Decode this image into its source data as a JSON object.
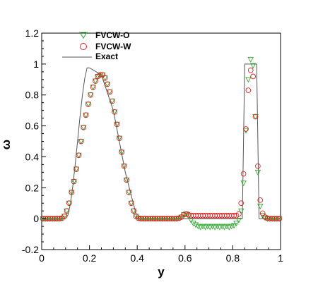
{
  "chart_data": {
    "type": "scatter",
    "xlabel": "y",
    "ylabel": "ω",
    "xlim": [
      0,
      1
    ],
    "ylim": [
      -0.2,
      1.2
    ],
    "x_ticks": [
      "0",
      "0.2",
      "0.4",
      "0.6",
      "0.8",
      "1"
    ],
    "y_ticks": [
      "-0.2",
      "0",
      "0.2",
      "0.4",
      "0.6",
      "0.8",
      "1",
      "1.2"
    ],
    "legend_position": "top-left",
    "series": [
      {
        "name": "FVCW-O",
        "marker": "triangle-down",
        "color": "#33aa33",
        "points": [
          [
            0.005,
            0
          ],
          [
            0.015,
            0
          ],
          [
            0.025,
            0
          ],
          [
            0.035,
            0
          ],
          [
            0.045,
            0
          ],
          [
            0.055,
            0
          ],
          [
            0.065,
            0
          ],
          [
            0.075,
            0
          ],
          [
            0.085,
            0.003
          ],
          [
            0.095,
            0.015
          ],
          [
            0.105,
            0.05
          ],
          [
            0.115,
            0.1
          ],
          [
            0.125,
            0.17
          ],
          [
            0.135,
            0.24
          ],
          [
            0.145,
            0.32
          ],
          [
            0.155,
            0.41
          ],
          [
            0.165,
            0.5
          ],
          [
            0.175,
            0.59
          ],
          [
            0.185,
            0.67
          ],
          [
            0.195,
            0.74
          ],
          [
            0.205,
            0.8
          ],
          [
            0.215,
            0.85
          ],
          [
            0.225,
            0.89
          ],
          [
            0.235,
            0.92
          ],
          [
            0.245,
            0.93
          ],
          [
            0.255,
            0.93
          ],
          [
            0.265,
            0.91
          ],
          [
            0.275,
            0.87
          ],
          [
            0.285,
            0.82
          ],
          [
            0.295,
            0.76
          ],
          [
            0.305,
            0.69
          ],
          [
            0.315,
            0.61
          ],
          [
            0.325,
            0.52
          ],
          [
            0.335,
            0.43
          ],
          [
            0.345,
            0.34
          ],
          [
            0.355,
            0.25
          ],
          [
            0.365,
            0.17
          ],
          [
            0.375,
            0.1
          ],
          [
            0.385,
            0.05
          ],
          [
            0.395,
            0.015
          ],
          [
            0.405,
            0.003
          ],
          [
            0.415,
            0
          ],
          [
            0.425,
            0
          ],
          [
            0.435,
            0
          ],
          [
            0.445,
            0
          ],
          [
            0.455,
            0
          ],
          [
            0.465,
            0
          ],
          [
            0.475,
            0
          ],
          [
            0.485,
            0
          ],
          [
            0.495,
            0
          ],
          [
            0.505,
            0
          ],
          [
            0.515,
            0
          ],
          [
            0.525,
            0
          ],
          [
            0.535,
            0
          ],
          [
            0.545,
            0
          ],
          [
            0.555,
            0
          ],
          [
            0.565,
            0
          ],
          [
            0.575,
            0.003
          ],
          [
            0.585,
            0.01
          ],
          [
            0.595,
            0.025
          ],
          [
            0.605,
            0.03
          ],
          [
            0.615,
            0.015
          ],
          [
            0.625,
            -0.01
          ],
          [
            0.635,
            -0.03
          ],
          [
            0.645,
            -0.04
          ],
          [
            0.655,
            -0.05
          ],
          [
            0.665,
            -0.055
          ],
          [
            0.675,
            -0.05
          ],
          [
            0.685,
            -0.055
          ],
          [
            0.695,
            -0.05
          ],
          [
            0.705,
            -0.055
          ],
          [
            0.715,
            -0.05
          ],
          [
            0.725,
            -0.055
          ],
          [
            0.735,
            -0.05
          ],
          [
            0.745,
            -0.055
          ],
          [
            0.755,
            -0.05
          ],
          [
            0.765,
            -0.055
          ],
          [
            0.775,
            -0.05
          ],
          [
            0.785,
            -0.055
          ],
          [
            0.795,
            -0.05
          ],
          [
            0.805,
            -0.045
          ],
          [
            0.815,
            -0.03
          ],
          [
            0.825,
            -0.01
          ],
          [
            0.835,
            0.05
          ],
          [
            0.845,
            0.23
          ],
          [
            0.855,
            0.57
          ],
          [
            0.865,
            0.9
          ],
          [
            0.875,
            1.03
          ],
          [
            0.885,
            0.99
          ],
          [
            0.895,
            0.66
          ],
          [
            0.905,
            0.3
          ],
          [
            0.915,
            0.08
          ],
          [
            0.925,
            0.02
          ],
          [
            0.935,
            0.005
          ],
          [
            0.945,
            0
          ],
          [
            0.955,
            0
          ],
          [
            0.965,
            0
          ],
          [
            0.975,
            0
          ],
          [
            0.985,
            0
          ],
          [
            0.995,
            0
          ]
        ]
      },
      {
        "name": "FVCW-W",
        "marker": "circle",
        "color": "#dd2222",
        "points": [
          [
            0.005,
            0
          ],
          [
            0.015,
            0
          ],
          [
            0.025,
            0
          ],
          [
            0.035,
            0
          ],
          [
            0.045,
            0
          ],
          [
            0.055,
            0
          ],
          [
            0.065,
            0
          ],
          [
            0.075,
            0
          ],
          [
            0.085,
            0.003
          ],
          [
            0.095,
            0.015
          ],
          [
            0.105,
            0.05
          ],
          [
            0.115,
            0.1
          ],
          [
            0.125,
            0.17
          ],
          [
            0.135,
            0.24
          ],
          [
            0.145,
            0.32
          ],
          [
            0.155,
            0.41
          ],
          [
            0.165,
            0.5
          ],
          [
            0.175,
            0.59
          ],
          [
            0.185,
            0.67
          ],
          [
            0.195,
            0.74
          ],
          [
            0.205,
            0.8
          ],
          [
            0.215,
            0.85
          ],
          [
            0.225,
            0.89
          ],
          [
            0.235,
            0.92
          ],
          [
            0.245,
            0.93
          ],
          [
            0.255,
            0.93
          ],
          [
            0.265,
            0.91
          ],
          [
            0.275,
            0.87
          ],
          [
            0.285,
            0.82
          ],
          [
            0.295,
            0.76
          ],
          [
            0.305,
            0.69
          ],
          [
            0.315,
            0.61
          ],
          [
            0.325,
            0.52
          ],
          [
            0.335,
            0.43
          ],
          [
            0.345,
            0.34
          ],
          [
            0.355,
            0.25
          ],
          [
            0.365,
            0.17
          ],
          [
            0.375,
            0.1
          ],
          [
            0.385,
            0.05
          ],
          [
            0.395,
            0.015
          ],
          [
            0.405,
            0.003
          ],
          [
            0.415,
            0
          ],
          [
            0.425,
            0
          ],
          [
            0.435,
            0
          ],
          [
            0.445,
            0
          ],
          [
            0.455,
            0
          ],
          [
            0.465,
            0
          ],
          [
            0.475,
            0
          ],
          [
            0.485,
            0
          ],
          [
            0.495,
            0
          ],
          [
            0.505,
            0
          ],
          [
            0.515,
            0
          ],
          [
            0.525,
            0
          ],
          [
            0.535,
            0
          ],
          [
            0.545,
            0
          ],
          [
            0.555,
            0
          ],
          [
            0.565,
            0
          ],
          [
            0.575,
            0.003
          ],
          [
            0.585,
            0.01
          ],
          [
            0.595,
            0.025
          ],
          [
            0.605,
            0.03
          ],
          [
            0.615,
            0.025
          ],
          [
            0.625,
            0.02
          ],
          [
            0.635,
            0.02
          ],
          [
            0.645,
            0.02
          ],
          [
            0.655,
            0.02
          ],
          [
            0.665,
            0.02
          ],
          [
            0.675,
            0.02
          ],
          [
            0.685,
            0.02
          ],
          [
            0.695,
            0.02
          ],
          [
            0.705,
            0.02
          ],
          [
            0.715,
            0.02
          ],
          [
            0.725,
            0.02
          ],
          [
            0.735,
            0.02
          ],
          [
            0.745,
            0.02
          ],
          [
            0.755,
            0.02
          ],
          [
            0.765,
            0.02
          ],
          [
            0.775,
            0.02
          ],
          [
            0.785,
            0.02
          ],
          [
            0.795,
            0.02
          ],
          [
            0.805,
            0.02
          ],
          [
            0.815,
            0.02
          ],
          [
            0.825,
            0.03
          ],
          [
            0.835,
            0.1
          ],
          [
            0.845,
            0.29
          ],
          [
            0.855,
            0.58
          ],
          [
            0.865,
            0.83
          ],
          [
            0.875,
            0.96
          ],
          [
            0.885,
            0.92
          ],
          [
            0.895,
            0.66
          ],
          [
            0.905,
            0.34
          ],
          [
            0.915,
            0.12
          ],
          [
            0.925,
            0.035
          ],
          [
            0.935,
            0.01
          ],
          [
            0.945,
            0.003
          ],
          [
            0.955,
            0
          ],
          [
            0.965,
            0
          ],
          [
            0.975,
            0
          ],
          [
            0.985,
            0
          ],
          [
            0.995,
            0
          ]
        ]
      },
      {
        "name": "Exact",
        "marker": "line",
        "color": "#555555",
        "points": [
          [
            0,
            0
          ],
          [
            0.1,
            0
          ],
          [
            0.11,
            0.0239
          ],
          [
            0.12,
            0.0955
          ],
          [
            0.13,
            0.2061
          ],
          [
            0.14,
            0.3455
          ],
          [
            0.15,
            0.5
          ],
          [
            0.16,
            0.6545
          ],
          [
            0.17,
            0.7939
          ],
          [
            0.18,
            0.9045
          ],
          [
            0.19,
            0.9755
          ],
          [
            0.2,
            0.9755
          ],
          [
            0.25,
            0.93
          ],
          [
            0.3,
            0.7
          ],
          [
            0.35,
            0.3
          ],
          [
            0.4,
            0
          ],
          [
            0.84,
            0
          ],
          [
            0.85,
            1
          ],
          [
            0.9,
            1
          ],
          [
            0.91,
            0
          ],
          [
            1,
            0
          ]
        ]
      }
    ]
  }
}
